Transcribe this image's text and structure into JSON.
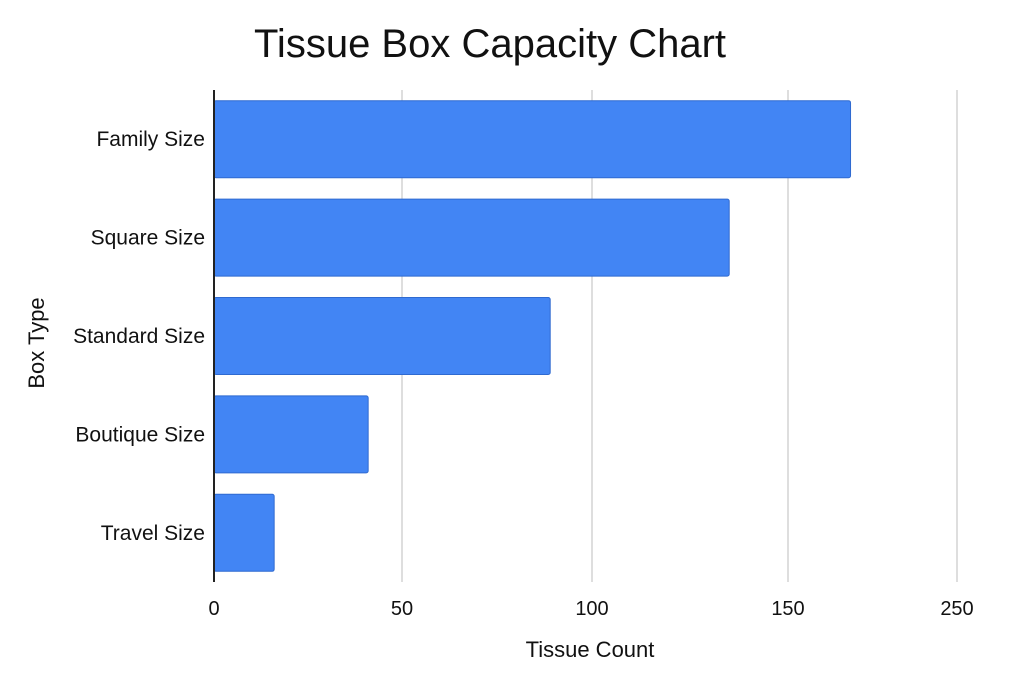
{
  "chart_data": {
    "type": "bar",
    "orientation": "horizontal",
    "title": "Tissue Box Capacity Chart",
    "xlabel": "Tissue Count",
    "ylabel": "Box Type",
    "categories": [
      "Family Size",
      "Square Size",
      "Standard Size",
      "Boutique Size",
      "Travel Size"
    ],
    "values": [
      187,
      135,
      89,
      41,
      16
    ],
    "xlim": [
      0,
      250
    ],
    "xticks": [
      0,
      50,
      100,
      150,
      250
    ],
    "grid": "vertical",
    "colors": {
      "bar": "#4285F4",
      "bar_stroke": "#2F6AD0",
      "grid": "#BDBDBD",
      "axis": "#222222"
    }
  }
}
